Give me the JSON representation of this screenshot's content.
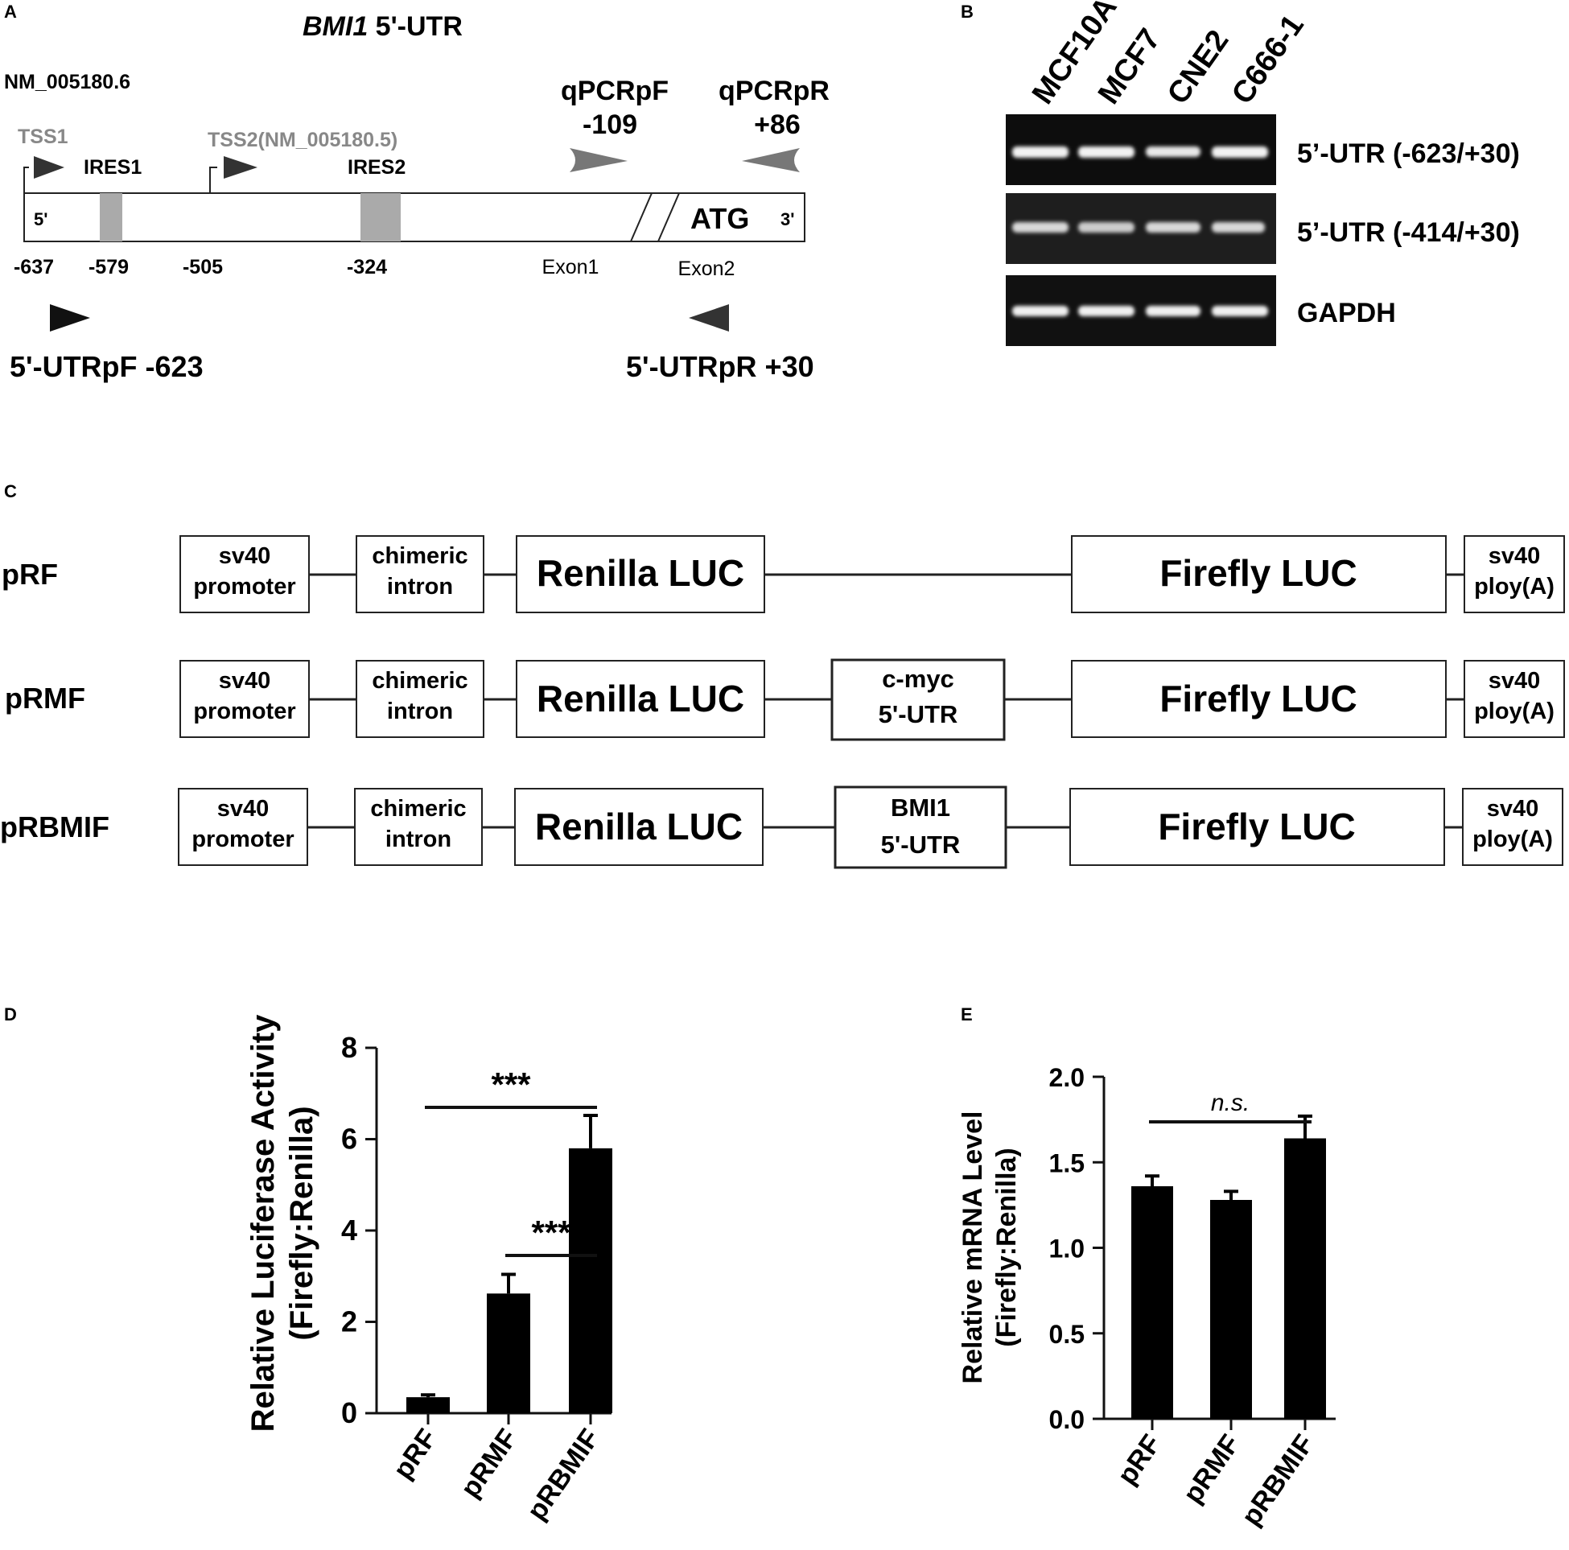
{
  "panel_a": {
    "label": "A",
    "title_gene": "BMI1",
    "title_rest": " 5'-UTR",
    "accession": "NM_005180.6",
    "tss1": "TSS1",
    "tss2": "TSS2(NM_005180.5)",
    "ires1": "IRES1",
    "ires2": "IRES2",
    "five_prime": "5'",
    "three_prime": "3'",
    "atg": "ATG",
    "positions": [
      "-637",
      "-579",
      "-505",
      "-324"
    ],
    "exon1": "Exon1",
    "exon2": "Exon2",
    "qpcr_f_name": "qPCRpF",
    "qpcr_f_pos": "-109",
    "qpcr_r_name": "qPCRpR",
    "qpcr_r_pos": "+86",
    "primer_f": "5'-UTRpF -623",
    "primer_r": "5'-UTRpR +30"
  },
  "panel_b": {
    "label": "B",
    "lanes": [
      "MCF10A",
      "MCF7",
      "CNE2",
      "C666-1"
    ],
    "bands": [
      "5’-UTR (-623/+30)",
      "5’-UTR (-414/+30)",
      "GAPDH"
    ]
  },
  "panel_c": {
    "label": "C",
    "constructs": [
      {
        "name": "pRF",
        "promoter": [
          "sv40",
          "promoter"
        ],
        "intron": [
          "chimeric",
          "intron"
        ],
        "renilla": "Renilla LUC",
        "insert": [],
        "firefly": "Firefly LUC",
        "polya": [
          "sv40",
          "ploy(A)"
        ]
      },
      {
        "name": "pRMF",
        "promoter": [
          "sv40",
          "promoter"
        ],
        "intron": [
          "chimeric",
          "intron"
        ],
        "renilla": "Renilla LUC",
        "insert": [
          "c-myc",
          "5'-UTR"
        ],
        "firefly": "Firefly LUC",
        "polya": [
          "sv40",
          "ploy(A)"
        ]
      },
      {
        "name": "pRBMIF",
        "promoter": [
          "sv40",
          "promoter"
        ],
        "intron": [
          "chimeric",
          "intron"
        ],
        "renilla": "Renilla LUC",
        "insert": [
          "BMI1",
          "5'-UTR"
        ],
        "firefly": "Firefly LUC",
        "polya": [
          "sv40",
          "ploy(A)"
        ]
      }
    ]
  },
  "panel_d_label": "D",
  "panel_e_label": "E",
  "chart_data": [
    {
      "type": "bar",
      "categories": [
        "pRF",
        "pRMF",
        "pRBMIF"
      ],
      "values": [
        0.35,
        2.62,
        5.8
      ],
      "errors": [
        0.05,
        0.42,
        0.72
      ],
      "ylabel": [
        "Relative Luciferase Activity",
        "(Firefly:Renilla)"
      ],
      "ylim": [
        0,
        8
      ],
      "yticks": [
        "0",
        "2",
        "4",
        "6",
        "8"
      ],
      "ytick_values": [
        0,
        2,
        4,
        6,
        8
      ],
      "significance": [
        {
          "from": 1,
          "to": 2,
          "label": "***"
        },
        {
          "from": 0,
          "to": 2,
          "label": "***"
        }
      ]
    },
    {
      "type": "bar",
      "categories": [
        "pRF",
        "pRMF",
        "pRBMIF"
      ],
      "values": [
        1.36,
        1.28,
        1.64
      ],
      "errors": [
        0.06,
        0.05,
        0.13
      ],
      "ylabel": [
        "Relative mRNA Level",
        "(Firefly:Renilla)"
      ],
      "ylim": [
        0,
        2
      ],
      "yticks": [
        "0.0",
        "0.5",
        "1.0",
        "1.5",
        "2.0"
      ],
      "ytick_values": [
        0,
        0.5,
        1.0,
        1.5,
        2.0
      ],
      "significance": [
        {
          "from": 0,
          "to": 2,
          "label": "n.s."
        }
      ]
    }
  ]
}
